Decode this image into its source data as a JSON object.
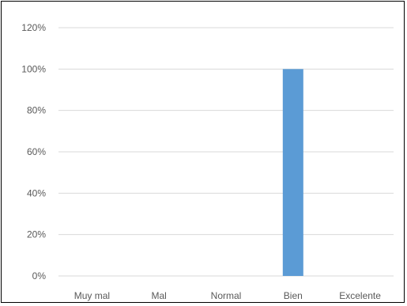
{
  "chart_data": {
    "type": "bar",
    "categories": [
      "Muy mal",
      "Mal",
      "Normal",
      "Bien",
      "Excelente"
    ],
    "values": [
      0,
      0,
      0,
      1.0,
      0
    ],
    "ylim": [
      0,
      1.2
    ],
    "y_ticks": [
      "0%",
      "20%",
      "40%",
      "60%",
      "80%",
      "100%",
      "120%"
    ],
    "bar_color": "#5b9bd5",
    "grid": true,
    "gridline_color": "#d9d9d9",
    "title": "",
    "xlabel": "",
    "ylabel": ""
  }
}
